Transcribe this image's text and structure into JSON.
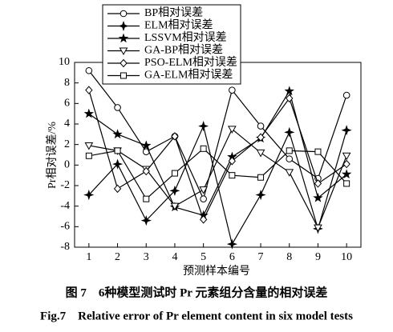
{
  "chart_data": {
    "type": "line",
    "x_label": "预测样本编号",
    "y_label": "Pr相对误差/%",
    "caption": "图 7　6种模型测试时 Pr 元素组分含量的相对误差",
    "caption_en": "Fig.7　Relative error of Pr element content in six model tests",
    "x": [
      1,
      2,
      3,
      4,
      5,
      6,
      7,
      8,
      9,
      10
    ],
    "xlim": [
      0.5,
      10.5
    ],
    "xticks": [
      1,
      2,
      3,
      4,
      5,
      6,
      7,
      8,
      9,
      10
    ],
    "ylim": [
      -8,
      10
    ],
    "yticks": [
      -8,
      -6,
      -4,
      -2,
      0,
      2,
      4,
      6,
      8,
      10
    ],
    "series": [
      {
        "name": "BP相对误差",
        "color": "#000000",
        "marker": "circle",
        "values": [
          9.2,
          5.6,
          1.3,
          2.8,
          -3.3,
          7.3,
          3.8,
          0.6,
          -1.3,
          6.8
        ]
      },
      {
        "name": "ELM相对误差",
        "color": "#000000",
        "marker": "filled-star",
        "values": [
          -2.9,
          0.1,
          -5.4,
          -2.5,
          3.8,
          -7.7,
          -2.9,
          3.2,
          -6.2,
          3.4
        ]
      },
      {
        "name": "LSSVM相对误差",
        "color": "#000000",
        "marker": "star",
        "values": [
          5.0,
          3.0,
          1.9,
          -4.1,
          -4.9,
          0.8,
          2.6,
          7.2,
          -3.2,
          -0.9
        ]
      },
      {
        "name": "GA-BP相对误差",
        "color": "#000000",
        "marker": "triangle-down",
        "values": [
          1.9,
          1.4,
          -0.4,
          -4.0,
          -2.4,
          3.5,
          1.2,
          -0.7,
          -6.1,
          0.9
        ]
      },
      {
        "name": "PSO-ELM相对误差",
        "color": "#000000",
        "marker": "diamond",
        "values": [
          7.3,
          -2.3,
          -0.6,
          2.8,
          -5.3,
          0.4,
          2.7,
          6.5,
          -1.8,
          0.1
        ]
      },
      {
        "name": "GA-ELM相对误差",
        "color": "#000000",
        "marker": "square",
        "values": [
          0.9,
          1.4,
          -3.3,
          -0.8,
          1.6,
          -1.0,
          -1.2,
          1.4,
          1.3,
          -1.8
        ]
      }
    ]
  }
}
